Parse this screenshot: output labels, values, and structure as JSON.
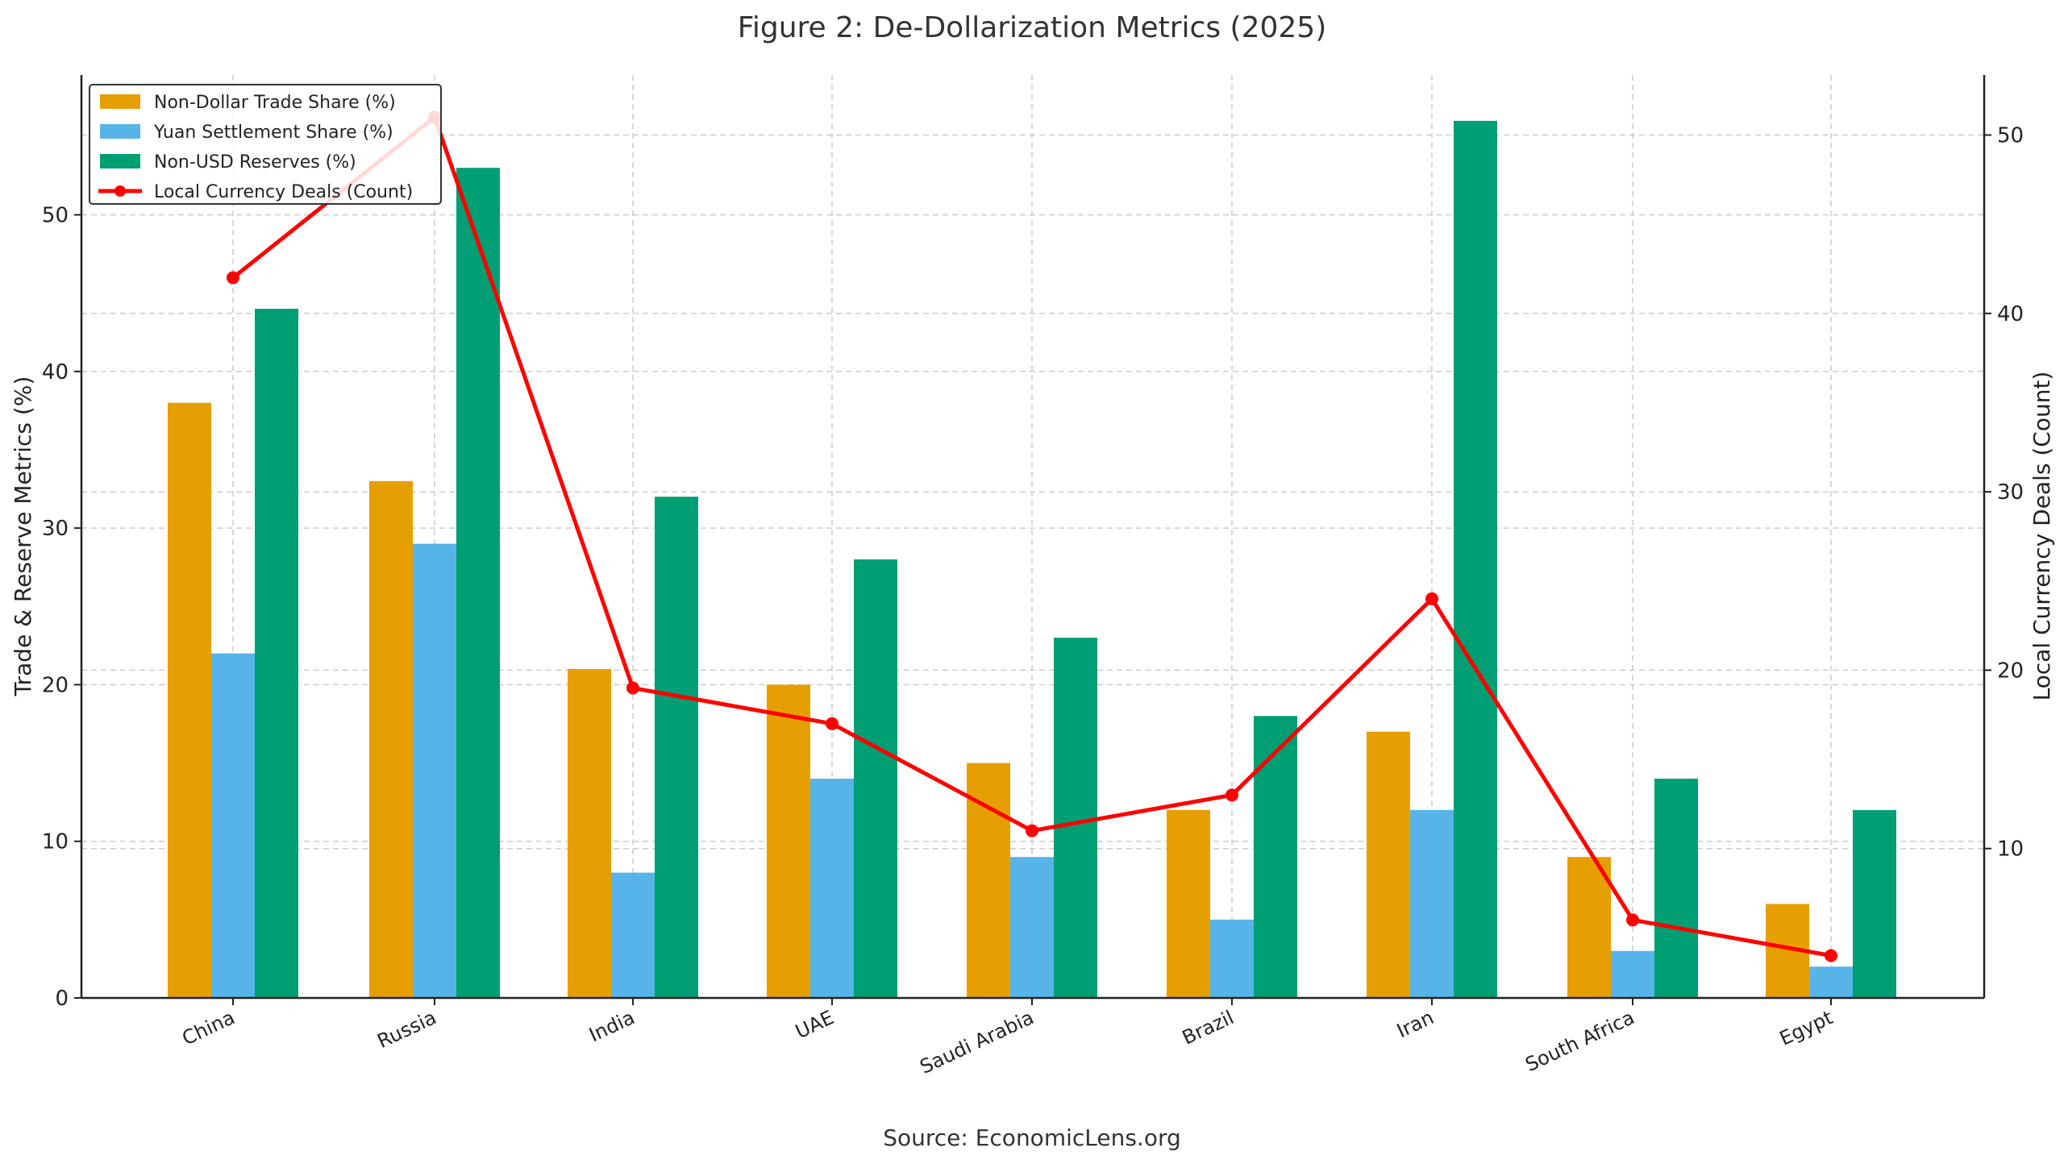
{
  "chart_data": {
    "type": "bar",
    "title": "Figure 2: De-Dollarization Metrics (2025)",
    "xlabel": "",
    "ylabel": "Trade & Reserve Metrics (%)",
    "y2label": "Local Currency Deals (Count)",
    "ylim": [
      0,
      59
    ],
    "y2lim": [
      1.5,
      53.5
    ],
    "yticks": [
      0,
      10,
      20,
      30,
      40,
      50
    ],
    "y2ticks": [
      10,
      20,
      30,
      40,
      50
    ],
    "grid": true,
    "legend_position": "upper left",
    "categories": [
      "China",
      "Russia",
      "India",
      "UAE",
      "Saudi Arabia",
      "Brazil",
      "Iran",
      "South Africa",
      "Egypt"
    ],
    "series": [
      {
        "name": "Non-Dollar Trade Share (%)",
        "type": "bar",
        "axis": "left",
        "color": "#E69F00",
        "values": [
          38,
          33,
          21,
          20,
          15,
          12,
          17,
          9,
          6
        ]
      },
      {
        "name": "Yuan Settlement Share (%)",
        "type": "bar",
        "axis": "left",
        "color": "#56B4E9",
        "values": [
          22,
          29,
          8,
          14,
          9,
          5,
          12,
          3,
          2
        ]
      },
      {
        "name": "Non-USD Reserves (%)",
        "type": "bar",
        "axis": "left",
        "color": "#009E73",
        "values": [
          44,
          53,
          32,
          28,
          23,
          18,
          56,
          14,
          12
        ]
      },
      {
        "name": "Local Currency Deals (Count)",
        "type": "line",
        "axis": "right",
        "color": "#FF0000",
        "marker": "circle",
        "values": [
          42,
          51,
          19,
          17,
          11,
          13,
          24,
          6,
          4
        ]
      }
    ],
    "annotations": [
      "Source: EconomicLens.org"
    ]
  },
  "source": "Source: EconomicLens.org"
}
